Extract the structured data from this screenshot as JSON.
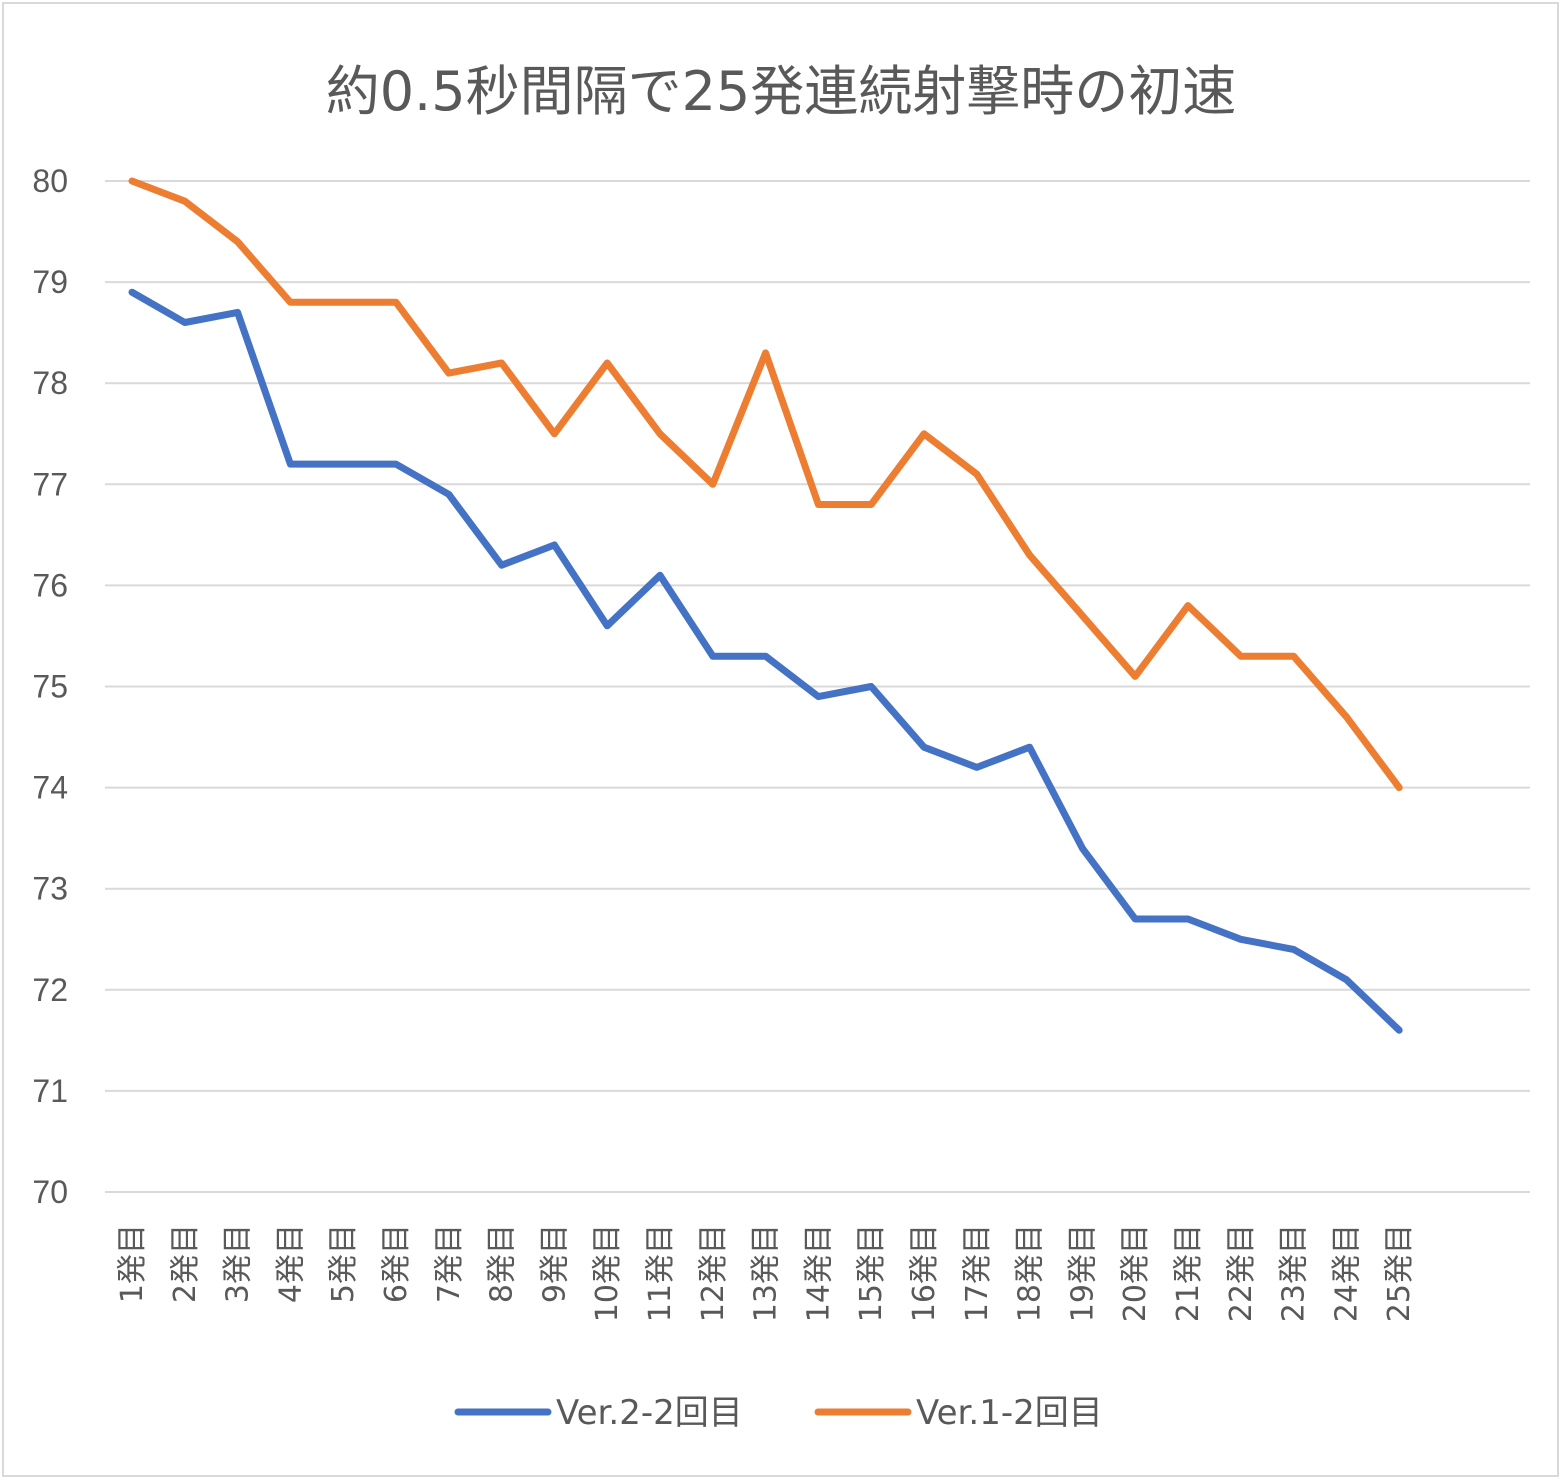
{
  "chart_data": {
    "type": "line",
    "title": "約0.5秒間隔で25発連続射撃時の初速",
    "categories": [
      "1発目",
      "2発目",
      "3発目",
      "4発目",
      "5発目",
      "6発目",
      "7発目",
      "8発目",
      "9発目",
      "10発目",
      "11発目",
      "12発目",
      "13発目",
      "14発目",
      "15発目",
      "16発目",
      "17発目",
      "18発目",
      "19発目",
      "20発目",
      "21発目",
      "22発目",
      "23発目",
      "24発目",
      "25発目"
    ],
    "series": [
      {
        "name": "Ver.2-2回目",
        "color": "#4472c4",
        "values": [
          78.9,
          78.6,
          78.7,
          77.2,
          77.2,
          77.2,
          76.9,
          76.2,
          76.4,
          75.6,
          76.1,
          75.3,
          75.3,
          74.9,
          75.0,
          74.4,
          74.2,
          74.4,
          73.4,
          72.7,
          72.7,
          72.5,
          72.4,
          72.1,
          71.6
        ]
      },
      {
        "name": "Ver.1-2回目",
        "color": "#ed7d31",
        "values": [
          80.0,
          79.8,
          79.4,
          78.8,
          78.8,
          78.8,
          78.1,
          78.2,
          77.5,
          78.2,
          77.5,
          77.0,
          78.3,
          76.8,
          76.8,
          77.5,
          77.1,
          76.3,
          75.7,
          75.1,
          75.8,
          75.3,
          75.3,
          74.7,
          74.0
        ]
      }
    ],
    "ylim": [
      70,
      80
    ],
    "yticks": [
      "70",
      "71",
      "72",
      "73",
      "74",
      "75",
      "76",
      "77",
      "78",
      "79",
      "80"
    ],
    "xlabel": "",
    "ylabel": "",
    "grid": true,
    "legend": "bottom"
  }
}
